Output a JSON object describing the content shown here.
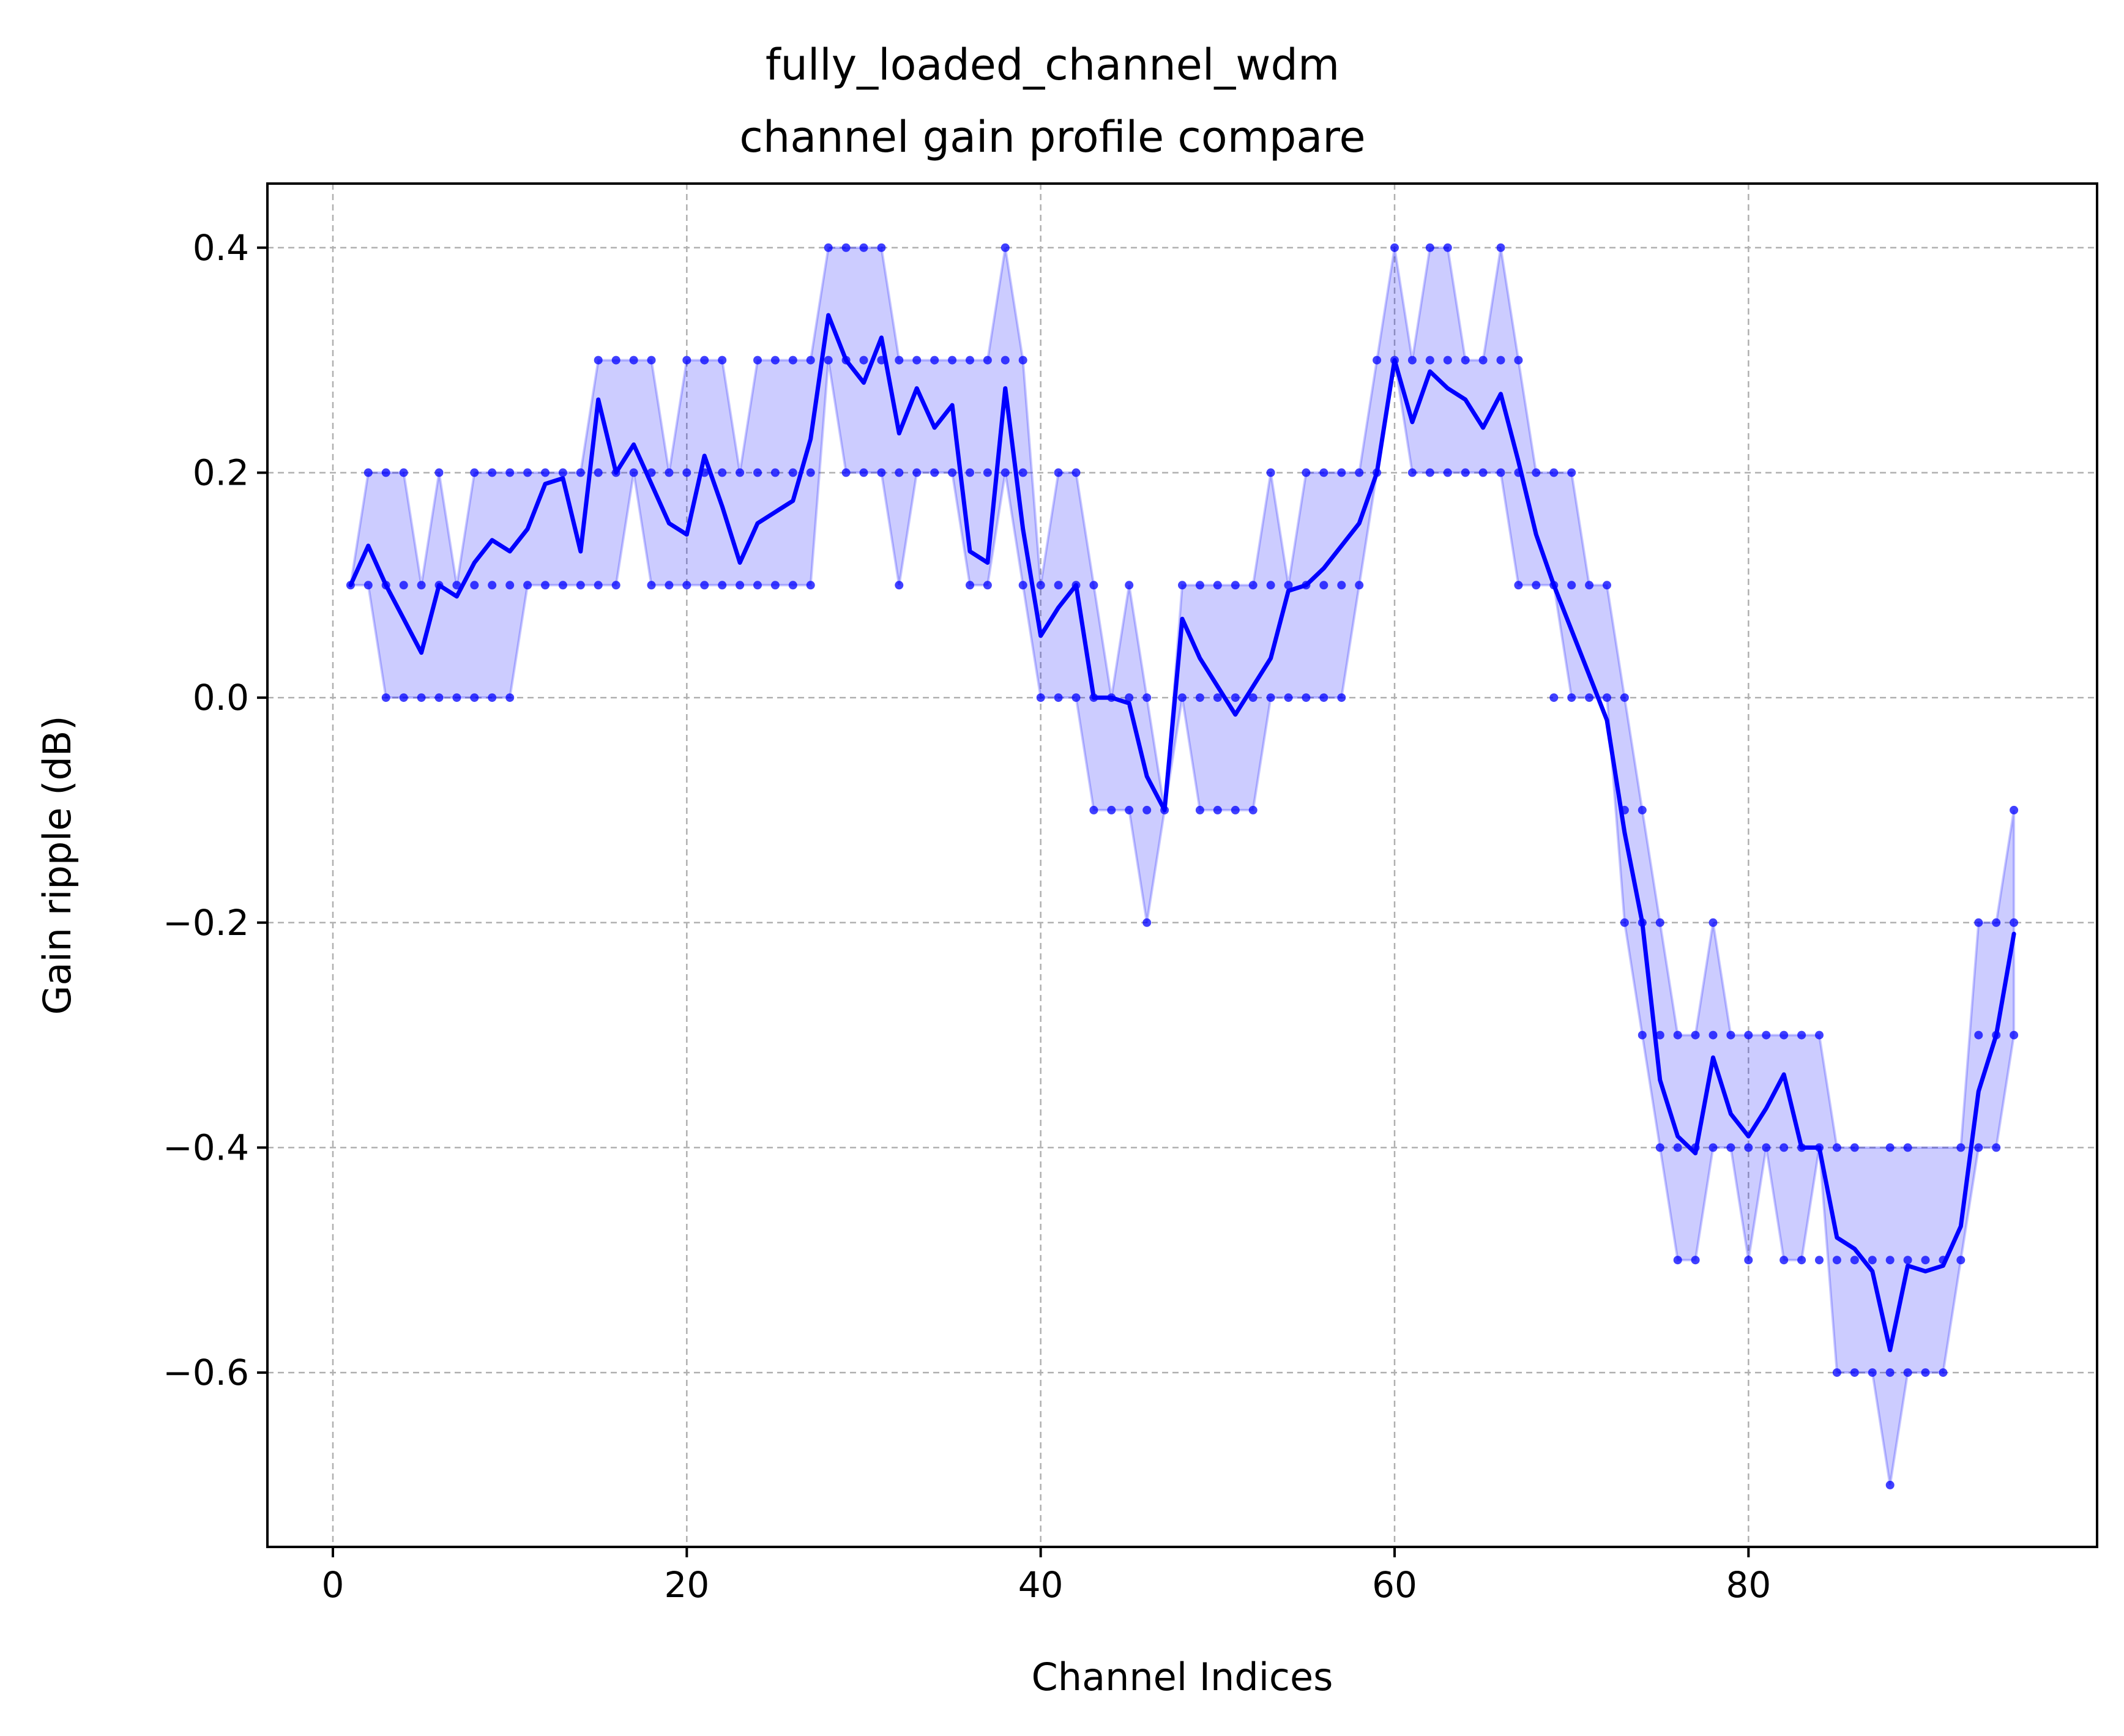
{
  "chart_data": {
    "type": "line",
    "title": [
      "fully_loaded_channel_wdm",
      "channel gain profile compare"
    ],
    "xlabel": "Channel Indices",
    "ylabel": "Gain ripple (dB)",
    "xlim": [
      -3.7,
      99.7
    ],
    "ylim": [
      -0.755,
      0.457
    ],
    "xticks": [
      0,
      20,
      40,
      60,
      80
    ],
    "xtick_labels": [
      "0",
      "20",
      "40",
      "60",
      "80"
    ],
    "yticks": [
      0.4,
      0.2,
      0.0,
      -0.2,
      -0.4,
      -0.6
    ],
    "ytick_labels": [
      "0.4",
      "0.2",
      "0.0",
      "−0.2",
      "−0.4",
      "−0.6"
    ],
    "grid": true,
    "line_color": "#0000ff",
    "band_color": "#0000ff",
    "x": [
      1,
      2,
      3,
      4,
      5,
      6,
      7,
      8,
      9,
      10,
      11,
      12,
      13,
      14,
      15,
      16,
      17,
      18,
      19,
      20,
      21,
      22,
      23,
      24,
      25,
      26,
      27,
      28,
      29,
      30,
      31,
      32,
      33,
      34,
      35,
      36,
      37,
      38,
      39,
      40,
      41,
      42,
      43,
      44,
      45,
      46,
      47,
      48,
      49,
      50,
      51,
      52,
      53,
      54,
      55,
      56,
      57,
      58,
      59,
      60,
      61,
      62,
      63,
      64,
      65,
      66,
      67,
      68,
      69,
      70,
      71,
      72,
      73,
      74,
      75,
      76,
      77,
      78,
      79,
      80,
      81,
      82,
      83,
      84,
      85,
      86,
      87,
      88,
      89,
      90,
      91,
      92,
      93,
      94,
      95
    ],
    "series": [
      {
        "type": "line",
        "values": [
          0.1,
          0.135,
          0.1,
          0.07,
          0.04,
          0.1,
          0.09,
          0.12,
          0.14,
          0.13,
          0.15,
          0.19,
          0.195,
          0.13,
          0.265,
          0.2,
          0.225,
          0.19,
          0.155,
          0.145,
          0.215,
          0.17,
          0.12,
          0.155,
          0.165,
          0.175,
          0.23,
          0.34,
          0.3,
          0.28,
          0.32,
          0.235,
          0.275,
          0.24,
          0.26,
          0.13,
          0.12,
          0.275,
          0.15,
          0.055,
          0.08,
          0.1,
          0.0,
          0.0,
          -0.005,
          -0.07,
          -0.1,
          0.07,
          0.035,
          0.01,
          -0.015,
          0.01,
          0.035,
          0.095,
          0.1,
          0.115,
          0.135,
          0.155,
          0.2,
          0.3,
          0.245,
          0.29,
          0.275,
          0.265,
          0.24,
          0.27,
          0.21,
          0.145,
          0.1,
          0.06,
          0.02,
          -0.02,
          -0.12,
          -0.2,
          -0.34,
          -0.39,
          -0.405,
          -0.32,
          -0.37,
          -0.39,
          -0.365,
          -0.335,
          -0.4,
          -0.4,
          -0.48,
          -0.49,
          -0.51,
          -0.58,
          -0.505,
          -0.51,
          -0.505,
          -0.47,
          -0.35,
          -0.3,
          -0.21
        ]
      },
      {
        "type": "band-upper",
        "values": [
          0.1,
          0.2,
          0.2,
          0.2,
          0.1,
          0.2,
          0.1,
          0.2,
          0.2,
          0.2,
          0.2,
          0.2,
          0.2,
          0.2,
          0.3,
          0.3,
          0.3,
          0.3,
          0.2,
          0.3,
          0.3,
          0.3,
          0.2,
          0.3,
          0.3,
          0.3,
          0.3,
          0.4,
          0.4,
          0.4,
          0.4,
          0.3,
          0.3,
          0.3,
          0.3,
          0.3,
          0.3,
          0.4,
          0.3,
          0.1,
          0.2,
          0.2,
          0.1,
          0.0,
          0.1,
          0.0,
          -0.1,
          0.1,
          0.1,
          0.1,
          0.1,
          0.1,
          0.2,
          0.1,
          0.2,
          0.2,
          0.2,
          0.2,
          0.3,
          0.4,
          0.3,
          0.4,
          0.4,
          0.3,
          0.3,
          0.4,
          0.3,
          0.2,
          0.2,
          0.2,
          0.1,
          0.1,
          0.0,
          -0.1,
          -0.2,
          -0.3,
          -0.3,
          -0.2,
          -0.3,
          -0.3,
          -0.3,
          -0.3,
          -0.3,
          -0.3,
          -0.4,
          -0.4,
          -0.4,
          -0.4,
          -0.4,
          -0.4,
          -0.4,
          -0.4,
          -0.2,
          -0.2,
          -0.1
        ]
      },
      {
        "type": "band-lower",
        "values": [
          0.1,
          0.1,
          0.0,
          0.0,
          0.0,
          0.0,
          0.0,
          0.0,
          0.0,
          0.0,
          0.1,
          0.1,
          0.1,
          0.1,
          0.1,
          0.1,
          0.2,
          0.1,
          0.1,
          0.1,
          0.1,
          0.1,
          0.1,
          0.1,
          0.1,
          0.1,
          0.1,
          0.3,
          0.2,
          0.2,
          0.2,
          0.1,
          0.2,
          0.2,
          0.2,
          0.1,
          0.1,
          0.2,
          0.1,
          0.0,
          0.0,
          0.0,
          -0.1,
          -0.1,
          -0.1,
          -0.2,
          -0.1,
          0.0,
          -0.1,
          -0.1,
          -0.1,
          -0.1,
          0.0,
          0.0,
          0.0,
          0.0,
          0.0,
          0.1,
          0.2,
          0.3,
          0.2,
          0.2,
          0.2,
          0.2,
          0.2,
          0.2,
          0.1,
          0.1,
          0.1,
          0.0,
          0.0,
          0.0,
          -0.2,
          -0.3,
          -0.4,
          -0.5,
          -0.5,
          -0.4,
          -0.4,
          -0.5,
          -0.4,
          -0.5,
          -0.5,
          -0.4,
          -0.6,
          -0.6,
          -0.6,
          -0.7,
          -0.6,
          -0.6,
          -0.6,
          -0.5,
          -0.4,
          -0.4,
          -0.3
        ]
      }
    ],
    "points": [
      [
        1,
        0.1
      ],
      [
        2,
        0.2
      ],
      [
        2,
        0.1
      ],
      [
        3,
        0.2
      ],
      [
        3,
        0.1
      ],
      [
        3,
        0.0
      ],
      [
        4,
        0.2
      ],
      [
        4,
        0.1
      ],
      [
        4,
        0.0
      ],
      [
        5,
        0.1
      ],
      [
        5,
        0.0
      ],
      [
        6,
        0.2
      ],
      [
        6,
        0.1
      ],
      [
        6,
        0.0
      ],
      [
        7,
        0.1
      ],
      [
        7,
        0.0
      ],
      [
        8,
        0.2
      ],
      [
        8,
        0.1
      ],
      [
        8,
        0.0
      ],
      [
        9,
        0.2
      ],
      [
        9,
        0.1
      ],
      [
        9,
        0.0
      ],
      [
        10,
        0.2
      ],
      [
        10,
        0.1
      ],
      [
        10,
        0.0
      ],
      [
        11,
        0.2
      ],
      [
        11,
        0.1
      ],
      [
        12,
        0.2
      ],
      [
        12,
        0.1
      ],
      [
        13,
        0.2
      ],
      [
        13,
        0.1
      ],
      [
        14,
        0.2
      ],
      [
        14,
        0.1
      ],
      [
        15,
        0.3
      ],
      [
        15,
        0.2
      ],
      [
        15,
        0.1
      ],
      [
        16,
        0.3
      ],
      [
        16,
        0.2
      ],
      [
        16,
        0.1
      ],
      [
        17,
        0.3
      ],
      [
        17,
        0.2
      ],
      [
        18,
        0.3
      ],
      [
        18,
        0.2
      ],
      [
        18,
        0.1
      ],
      [
        19,
        0.2
      ],
      [
        19,
        0.1
      ],
      [
        20,
        0.3
      ],
      [
        20,
        0.2
      ],
      [
        20,
        0.1
      ],
      [
        21,
        0.3
      ],
      [
        21,
        0.2
      ],
      [
        21,
        0.1
      ],
      [
        22,
        0.3
      ],
      [
        22,
        0.2
      ],
      [
        22,
        0.1
      ],
      [
        23,
        0.2
      ],
      [
        23,
        0.1
      ],
      [
        24,
        0.3
      ],
      [
        24,
        0.2
      ],
      [
        24,
        0.1
      ],
      [
        25,
        0.3
      ],
      [
        25,
        0.2
      ],
      [
        25,
        0.1
      ],
      [
        26,
        0.3
      ],
      [
        26,
        0.2
      ],
      [
        26,
        0.1
      ],
      [
        27,
        0.3
      ],
      [
        27,
        0.2
      ],
      [
        27,
        0.1
      ],
      [
        28,
        0.4
      ],
      [
        28,
        0.3
      ],
      [
        29,
        0.4
      ],
      [
        29,
        0.3
      ],
      [
        29,
        0.2
      ],
      [
        30,
        0.4
      ],
      [
        30,
        0.3
      ],
      [
        30,
        0.2
      ],
      [
        31,
        0.4
      ],
      [
        31,
        0.3
      ],
      [
        31,
        0.2
      ],
      [
        32,
        0.3
      ],
      [
        32,
        0.2
      ],
      [
        32,
        0.1
      ],
      [
        33,
        0.3
      ],
      [
        33,
        0.2
      ],
      [
        34,
        0.3
      ],
      [
        34,
        0.2
      ],
      [
        35,
        0.3
      ],
      [
        35,
        0.2
      ],
      [
        36,
        0.3
      ],
      [
        36,
        0.2
      ],
      [
        36,
        0.1
      ],
      [
        37,
        0.3
      ],
      [
        37,
        0.2
      ],
      [
        37,
        0.1
      ],
      [
        38,
        0.4
      ],
      [
        38,
        0.3
      ],
      [
        38,
        0.2
      ],
      [
        39,
        0.3
      ],
      [
        39,
        0.2
      ],
      [
        39,
        0.1
      ],
      [
        40,
        0.1
      ],
      [
        40,
        0.0
      ],
      [
        41,
        0.2
      ],
      [
        41,
        0.1
      ],
      [
        41,
        0.0
      ],
      [
        42,
        0.2
      ],
      [
        42,
        0.1
      ],
      [
        42,
        0.0
      ],
      [
        43,
        0.1
      ],
      [
        43,
        0.0
      ],
      [
        43,
        -0.1
      ],
      [
        44,
        0.0
      ],
      [
        44,
        -0.1
      ],
      [
        45,
        0.1
      ],
      [
        45,
        0.0
      ],
      [
        45,
        -0.1
      ],
      [
        46,
        0.0
      ],
      [
        46,
        -0.1
      ],
      [
        46,
        -0.2
      ],
      [
        47,
        -0.1
      ],
      [
        48,
        0.1
      ],
      [
        48,
        0.0
      ],
      [
        49,
        0.1
      ],
      [
        49,
        0.0
      ],
      [
        49,
        -0.1
      ],
      [
        50,
        0.1
      ],
      [
        50,
        0.0
      ],
      [
        50,
        -0.1
      ],
      [
        51,
        0.1
      ],
      [
        51,
        0.0
      ],
      [
        51,
        -0.1
      ],
      [
        52,
        0.1
      ],
      [
        52,
        0.0
      ],
      [
        52,
        -0.1
      ],
      [
        53,
        0.2
      ],
      [
        53,
        0.1
      ],
      [
        53,
        0.0
      ],
      [
        54,
        0.1
      ],
      [
        54,
        0.0
      ],
      [
        55,
        0.2
      ],
      [
        55,
        0.1
      ],
      [
        55,
        0.0
      ],
      [
        56,
        0.2
      ],
      [
        56,
        0.1
      ],
      [
        56,
        0.0
      ],
      [
        57,
        0.2
      ],
      [
        57,
        0.1
      ],
      [
        57,
        0.0
      ],
      [
        58,
        0.2
      ],
      [
        58,
        0.1
      ],
      [
        59,
        0.3
      ],
      [
        59,
        0.2
      ],
      [
        60,
        0.4
      ],
      [
        60,
        0.3
      ],
      [
        61,
        0.3
      ],
      [
        61,
        0.2
      ],
      [
        62,
        0.4
      ],
      [
        62,
        0.3
      ],
      [
        62,
        0.2
      ],
      [
        63,
        0.4
      ],
      [
        63,
        0.3
      ],
      [
        63,
        0.2
      ],
      [
        64,
        0.3
      ],
      [
        64,
        0.2
      ],
      [
        65,
        0.3
      ],
      [
        65,
        0.2
      ],
      [
        66,
        0.4
      ],
      [
        66,
        0.3
      ],
      [
        66,
        0.2
      ],
      [
        67,
        0.3
      ],
      [
        67,
        0.2
      ],
      [
        67,
        0.1
      ],
      [
        68,
        0.2
      ],
      [
        68,
        0.1
      ],
      [
        69,
        0.2
      ],
      [
        69,
        0.1
      ],
      [
        69,
        0.0
      ],
      [
        70,
        0.2
      ],
      [
        70,
        0.1
      ],
      [
        70,
        0.0
      ],
      [
        71,
        0.1
      ],
      [
        71,
        0.0
      ],
      [
        72,
        0.1
      ],
      [
        72,
        0.0
      ],
      [
        73,
        0.0
      ],
      [
        73,
        -0.1
      ],
      [
        73,
        -0.2
      ],
      [
        74,
        -0.1
      ],
      [
        74,
        -0.2
      ],
      [
        74,
        -0.3
      ],
      [
        75,
        -0.2
      ],
      [
        75,
        -0.3
      ],
      [
        75,
        -0.4
      ],
      [
        76,
        -0.3
      ],
      [
        76,
        -0.4
      ],
      [
        76,
        -0.5
      ],
      [
        77,
        -0.3
      ],
      [
        77,
        -0.4
      ],
      [
        77,
        -0.5
      ],
      [
        78,
        -0.2
      ],
      [
        78,
        -0.3
      ],
      [
        78,
        -0.4
      ],
      [
        79,
        -0.3
      ],
      [
        79,
        -0.4
      ],
      [
        80,
        -0.3
      ],
      [
        80,
        -0.4
      ],
      [
        80,
        -0.5
      ],
      [
        81,
        -0.3
      ],
      [
        81,
        -0.4
      ],
      [
        82,
        -0.3
      ],
      [
        82,
        -0.4
      ],
      [
        82,
        -0.5
      ],
      [
        83,
        -0.3
      ],
      [
        83,
        -0.4
      ],
      [
        83,
        -0.5
      ],
      [
        84,
        -0.3
      ],
      [
        84,
        -0.4
      ],
      [
        84,
        -0.5
      ],
      [
        85,
        -0.4
      ],
      [
        85,
        -0.5
      ],
      [
        85,
        -0.6
      ],
      [
        86,
        -0.4
      ],
      [
        86,
        -0.5
      ],
      [
        86,
        -0.6
      ],
      [
        87,
        -0.5
      ],
      [
        87,
        -0.6
      ],
      [
        88,
        -0.4
      ],
      [
        88,
        -0.5
      ],
      [
        88,
        -0.6
      ],
      [
        88,
        -0.7
      ],
      [
        89,
        -0.4
      ],
      [
        89,
        -0.5
      ],
      [
        89,
        -0.6
      ],
      [
        90,
        -0.5
      ],
      [
        90,
        -0.6
      ],
      [
        91,
        -0.5
      ],
      [
        91,
        -0.6
      ],
      [
        92,
        -0.4
      ],
      [
        92,
        -0.5
      ],
      [
        93,
        -0.4
      ],
      [
        93,
        -0.3
      ],
      [
        93,
        -0.2
      ],
      [
        94,
        -0.4
      ],
      [
        94,
        -0.3
      ],
      [
        94,
        -0.2
      ],
      [
        95,
        -0.3
      ],
      [
        95,
        -0.2
      ],
      [
        95,
        -0.1
      ]
    ]
  }
}
